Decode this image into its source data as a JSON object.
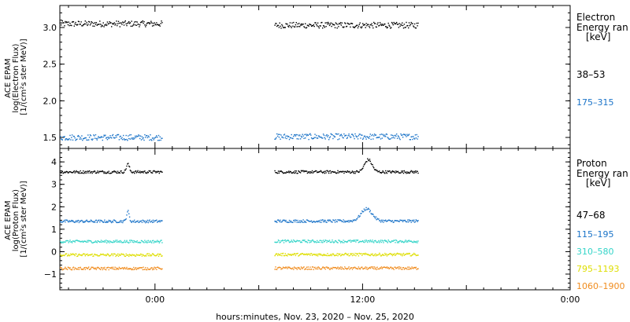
{
  "chart_data": [
    {
      "type": "scatter",
      "panel": "electron",
      "ylabel_lines": [
        "ACE EPAM",
        "log(Electron Flux)",
        "[1/(cm²s ster MeV)]"
      ],
      "ylim": [
        1.35,
        3.3
      ],
      "yticks": [
        "1.5",
        "2.0",
        "2.5",
        "3.0"
      ],
      "ytick_values": [
        1.5,
        2.0,
        2.5,
        3.0
      ],
      "legend_title_lines": [
        "Electron",
        "Energy ran",
        "[keV]"
      ],
      "series": [
        {
          "name": "38–53",
          "color": "#000000",
          "segments": [
            {
              "x_start": -5.5,
              "x_end": 0.4,
              "mean": 3.05
            },
            {
              "x_start": 6.9,
              "x_end": 15.2,
              "mean": 3.03
            }
          ]
        },
        {
          "name": "175–315",
          "color": "#1a73c8",
          "segments": [
            {
              "x_start": -5.5,
              "x_end": 0.4,
              "mean": 1.5
            },
            {
              "x_start": 6.9,
              "x_end": 15.2,
              "mean": 1.51
            }
          ]
        }
      ]
    },
    {
      "type": "scatter",
      "panel": "proton",
      "ylabel_lines": [
        "ACE EPAM",
        "log(Proton Flux)",
        "[1/(cm²s ster MeV)]"
      ],
      "ylim": [
        -1.7,
        4.6
      ],
      "yticks": [
        "−1",
        "0",
        "1",
        "2",
        "3",
        "4"
      ],
      "ytick_values": [
        -1,
        0,
        1,
        2,
        3,
        4
      ],
      "legend_title_lines": [
        "Proton",
        "Energy ran",
        "[keV]"
      ],
      "series": [
        {
          "name": "47–68",
          "color": "#000000",
          "segments": [
            {
              "x_start": -5.5,
              "x_end": 0.4,
              "mean": 3.55,
              "bump": {
                "x": -1.6,
                "h": 0.35,
                "w": 0.12
              }
            },
            {
              "x_start": 6.9,
              "x_end": 15.2,
              "mean": 3.55,
              "bump": {
                "x": 12.3,
                "h": 0.55,
                "w": 0.3
              }
            }
          ]
        },
        {
          "name": "115–195",
          "color": "#1a73c8",
          "segments": [
            {
              "x_start": -5.5,
              "x_end": 0.4,
              "mean": 1.35,
              "bump": {
                "x": -1.6,
                "h": 0.45,
                "w": 0.1
              }
            },
            {
              "x_start": 6.9,
              "x_end": 15.2,
              "mean": 1.36,
              "bump": {
                "x": 12.2,
                "h": 0.55,
                "w": 0.45
              }
            }
          ]
        },
        {
          "name": "310–580",
          "color": "#33d4c8",
          "segments": [
            {
              "x_start": -5.5,
              "x_end": 0.4,
              "mean": 0.45
            },
            {
              "x_start": 6.9,
              "x_end": 15.2,
              "mean": 0.46
            }
          ]
        },
        {
          "name": "795–1193",
          "color": "#dede00",
          "segments": [
            {
              "x_start": -5.5,
              "x_end": 0.4,
              "mean": -0.15
            },
            {
              "x_start": 6.9,
              "x_end": 15.2,
              "mean": -0.13
            }
          ]
        },
        {
          "name": "1060–1900",
          "color": "#f08c1e",
          "segments": [
            {
              "x_start": -5.5,
              "x_end": 0.4,
              "mean": -0.75
            },
            {
              "x_start": 6.9,
              "x_end": 15.2,
              "mean": -0.74
            }
          ]
        }
      ]
    }
  ],
  "xaxis": {
    "range_hours": [
      -5.5,
      24
    ],
    "ticks": [
      {
        "h": 0,
        "label": "0:00"
      },
      {
        "h": 12,
        "label": "12:00"
      },
      {
        "h": 24,
        "label": "0:00"
      }
    ],
    "xlabel": "hours:minutes, Nov. 23, 2020 – Nov. 25, 2020"
  }
}
